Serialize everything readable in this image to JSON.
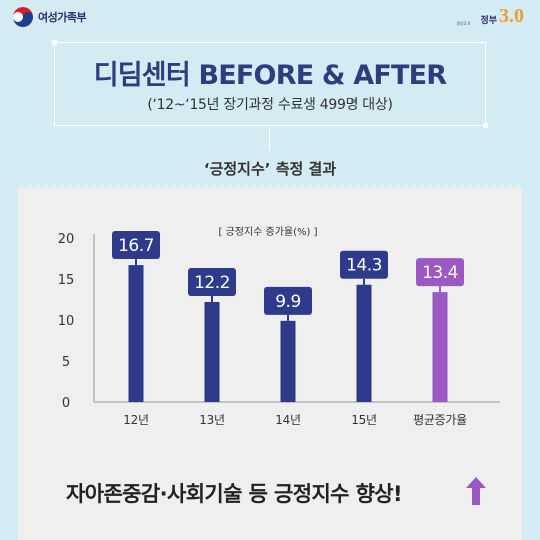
{
  "header": {
    "ministry_name": "여성가족부",
    "gov_small_text": "정부3.0",
    "gov_text": "정부",
    "gov_number": "3.0"
  },
  "title": {
    "main": "디딤센터 BEFORE & AFTER",
    "sub": "(‘12~‘15년 장기과정 수료생 499명 대상)"
  },
  "section_title": "‘긍정지수’ 측정 결과",
  "chart_data": {
    "type": "bar",
    "title": "[ 긍정지수 증가율(%) ]",
    "categories": [
      "12년",
      "13년",
      "14년",
      "15년",
      "평균증가율"
    ],
    "values": [
      16.7,
      12.2,
      9.9,
      14.3,
      13.4
    ],
    "data_labels": [
      "16.7",
      "12.2",
      "9.9",
      "14.3",
      "13.4"
    ],
    "colors": [
      "#2f3a8a",
      "#2f3a8a",
      "#2f3a8a",
      "#2f3a8a",
      "#9b59c4"
    ],
    "ylim": [
      0,
      20
    ],
    "yticks": [
      0,
      5,
      10,
      15,
      20
    ],
    "ytick_labels": [
      "0",
      "5",
      "10",
      "15",
      "20"
    ],
    "grid": false,
    "legend": "none"
  },
  "footer": {
    "conclusion": "자아존중감·사회기술 등 긍정지수 향상!",
    "arrow_color": "#9b59c4"
  }
}
